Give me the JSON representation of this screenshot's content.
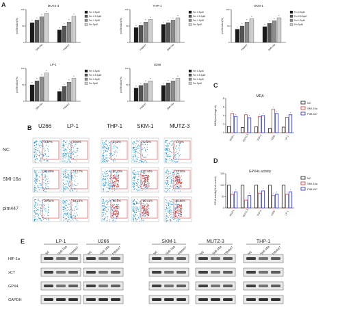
{
  "panel_labels": {
    "A": "A",
    "B": "B",
    "C": "C",
    "D": "D",
    "E": "E"
  },
  "legend_A": [
    "Fer 0.5μM",
    "Fer 0.5 5μM",
    "Fer 1.5μM",
    "Fer 5μM"
  ],
  "colors": {
    "black": "#1a1a1a",
    "dark": "#555555",
    "mid": "#8c8c8c",
    "light": "#cfcfcf",
    "nc": "#404040",
    "smi": "#e8534a",
    "pim": "#4a4fe0"
  },
  "chart_data": [
    {
      "type": "bar",
      "title": "MUTZ-3",
      "ylabel": "proliferation(%)",
      "categories": [
        "SMI-16a",
        "PIM447"
      ],
      "series": [
        {
          "values": [
            60,
            38
          ]
        },
        {
          "values": [
            68,
            50
          ]
        },
        {
          "values": [
            78,
            62
          ]
        },
        {
          "values": [
            88,
            80
          ]
        }
      ],
      "ylim": [
        0,
        100
      ]
    },
    {
      "type": "bar",
      "title": "THP-1",
      "ylabel": "proliferation(%)",
      "categories": [
        "PIM447",
        "SMI-16a"
      ],
      "series": [
        {
          "values": [
            45,
            55
          ]
        },
        {
          "values": [
            52,
            60
          ]
        },
        {
          "values": [
            62,
            68
          ]
        },
        {
          "values": [
            70,
            75
          ]
        }
      ],
      "ylim": [
        0,
        100
      ]
    },
    {
      "type": "bar",
      "title": "SKM-1",
      "ylabel": "proliferation(%)",
      "categories": [
        "PIM447",
        "SMI-16a"
      ],
      "series": [
        {
          "values": [
            40,
            48
          ]
        },
        {
          "values": [
            50,
            58
          ]
        },
        {
          "values": [
            62,
            66
          ]
        },
        {
          "values": [
            72,
            75
          ]
        }
      ],
      "ylim": [
        0,
        100
      ]
    },
    {
      "type": "bar",
      "title": "LP-1",
      "ylabel": "proliferation(%)",
      "categories": [
        "SMI-16a",
        "PIM447"
      ],
      "series": [
        {
          "values": [
            50,
            30
          ]
        },
        {
          "values": [
            62,
            45
          ]
        },
        {
          "values": [
            74,
            58
          ]
        },
        {
          "values": [
            86,
            70
          ]
        }
      ],
      "ylim": [
        0,
        100
      ]
    },
    {
      "type": "bar",
      "title": "U266",
      "ylabel": "proliferation(%)",
      "categories": [
        "PIM447",
        "SMI-16a"
      ],
      "series": [
        {
          "values": [
            40,
            48
          ]
        },
        {
          "values": [
            48,
            56
          ]
        },
        {
          "values": [
            55,
            62
          ]
        },
        {
          "values": [
            62,
            70
          ]
        }
      ],
      "ylim": [
        0,
        100
      ]
    },
    {
      "type": "bar",
      "title": "MDA",
      "ylabel": "MDA(nmol/mgprot)",
      "categories": [
        "SKM-1",
        "MUTZ-3",
        "THP-1",
        "U266",
        "LP-1"
      ],
      "series": [
        {
          "name": "NC",
          "values": [
            1.5,
            1.2,
            1.4,
            1.0,
            1.3
          ]
        },
        {
          "name": "SMI-16a",
          "values": [
            4.5,
            4.2,
            3.8,
            5.5,
            3.6
          ]
        },
        {
          "name": "PIM-447",
          "values": [
            3.8,
            3.5,
            4.0,
            4.5,
            4.2
          ]
        }
      ],
      "ylim": [
        0,
        8
      ]
    },
    {
      "type": "bar",
      "title": "GPX4s activity",
      "ylabel": "GPX4 activity(% of control)",
      "categories": [
        "SKM-1",
        "MUTZ-3",
        "THP-1",
        "U266",
        "LP-1"
      ],
      "series": [
        {
          "name": "NC",
          "values": [
            100,
            100,
            100,
            100,
            100
          ]
        },
        {
          "name": "SMI-16a",
          "values": [
            60,
            35,
            65,
            55,
            60
          ]
        },
        {
          "name": "PIM-447",
          "values": [
            70,
            55,
            75,
            60,
            70
          ]
        }
      ],
      "ylim": [
        0,
        150
      ]
    }
  ],
  "flow": {
    "columns": [
      "U266",
      "LP-1",
      "THP-1",
      "SKM-1",
      "MUTZ-3"
    ],
    "rows": [
      "NC",
      "SMI-16a",
      "pim447"
    ],
    "values": [
      [
        "3.27%",
        "3.60%",
        "1.44%",
        "4.42%",
        "1.03%"
      ],
      [
        "25.29%",
        "13.17%",
        "80.42%",
        "40.44%",
        "33.50%"
      ],
      [
        "20.44%",
        "18.14%",
        "90.5%",
        "40.01%",
        "55.50%"
      ]
    ]
  },
  "wb": {
    "groups": [
      "LP-1",
      "U266",
      "SKM-1",
      "MUTZ-3",
      "THP-1"
    ],
    "lanes": [
      "NC",
      "SMI-16a",
      "PIM447"
    ],
    "proteins": [
      "HIF-1α",
      "xCT",
      "GPX4",
      "GAPDH"
    ]
  }
}
